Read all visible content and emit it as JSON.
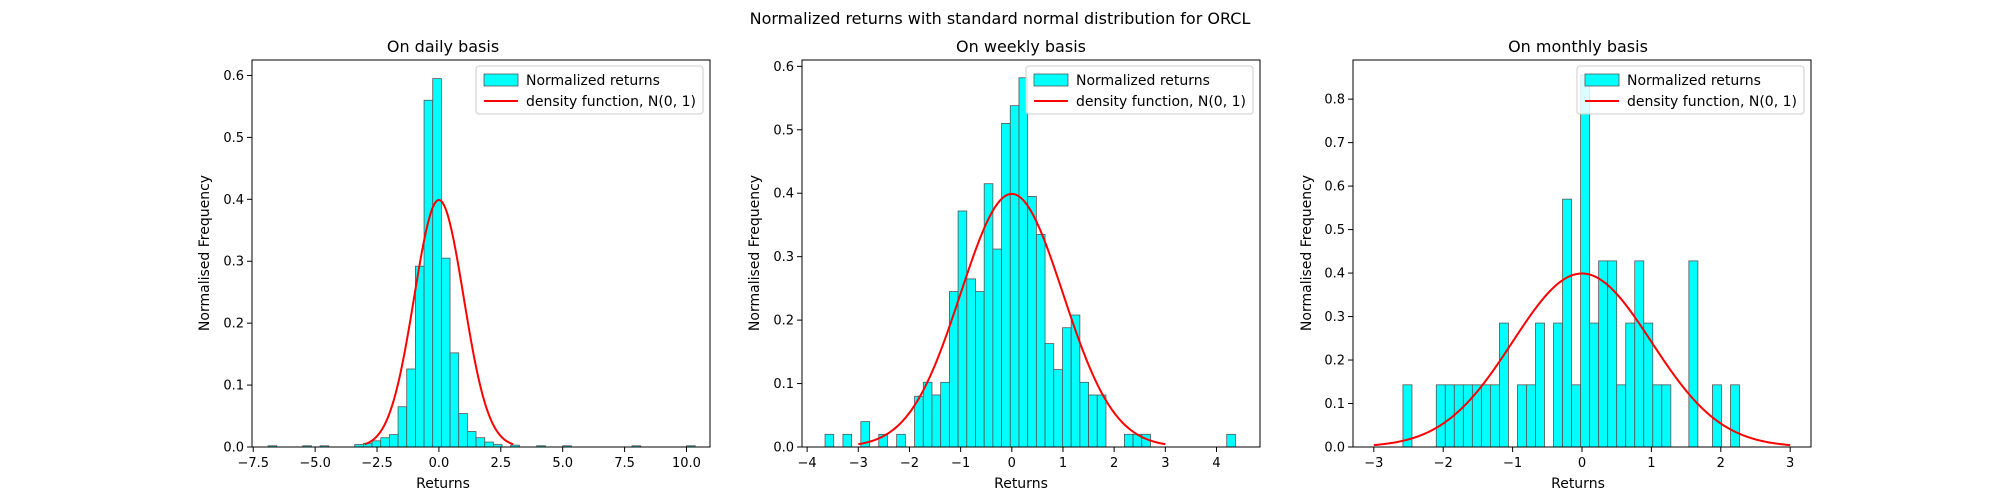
{
  "figure": {
    "title": "Normalized returns with standard normal distribution for ORCL",
    "bar_color": "#00ffff",
    "bar_edge_color": "#555555",
    "line_color": "#ff0000"
  },
  "chart_data": [
    {
      "type": "bar",
      "title": "On daily basis",
      "xlabel": "Returns",
      "ylabel": "Normalised Frequency",
      "xlim": [
        -7.55,
        10.95
      ],
      "ylim": [
        0,
        0.625
      ],
      "xticks": [
        -7.5,
        -5.0,
        -2.5,
        0.0,
        2.5,
        5.0,
        7.5,
        10.0
      ],
      "xtick_labels": [
        "−7.5",
        "−5.0",
        "−2.5",
        "0.0",
        "2.5",
        "5.0",
        "7.5",
        "10.0"
      ],
      "yticks": [
        0.0,
        0.1,
        0.2,
        0.3,
        0.4,
        0.5,
        0.6
      ],
      "ytick_labels": [
        "0.0",
        "0.1",
        "0.2",
        "0.3",
        "0.4",
        "0.5",
        "0.6"
      ],
      "legend": {
        "placement": "top-right",
        "bars": "Normalized returns",
        "line": "density function, N(0, 1)"
      },
      "histogram": {
        "bins": [
          [
            -6.9,
            -6.55,
            0.002
          ],
          [
            -5.5,
            -5.15,
            0.002
          ],
          [
            -4.8,
            -4.45,
            0.002
          ],
          [
            -3.4,
            -3.05,
            0.004
          ],
          [
            -3.05,
            -2.7,
            0.006
          ],
          [
            -2.7,
            -2.35,
            0.01
          ],
          [
            -2.35,
            -2.0,
            0.015
          ],
          [
            -2.0,
            -1.65,
            0.02
          ],
          [
            -1.65,
            -1.3,
            0.065
          ],
          [
            -1.3,
            -0.95,
            0.126
          ],
          [
            -0.95,
            -0.6,
            0.292
          ],
          [
            -0.6,
            -0.25,
            0.56
          ],
          [
            -0.25,
            0.1,
            0.595
          ],
          [
            0.1,
            0.45,
            0.305
          ],
          [
            0.45,
            0.8,
            0.152
          ],
          [
            0.8,
            1.15,
            0.054
          ],
          [
            1.15,
            1.5,
            0.025
          ],
          [
            1.5,
            1.85,
            0.015
          ],
          [
            1.85,
            2.2,
            0.008
          ],
          [
            2.2,
            2.55,
            0.004
          ],
          [
            2.9,
            3.25,
            0.003
          ],
          [
            3.95,
            4.3,
            0.002
          ],
          [
            5.0,
            5.35,
            0.002
          ],
          [
            7.8,
            8.15,
            0.002
          ],
          [
            10.0,
            10.35,
            0.002
          ]
        ]
      },
      "density_curve": {
        "distribution": "N(0, 1)",
        "x_range": [
          -3,
          3
        ]
      }
    },
    {
      "type": "bar",
      "title": "On weekly basis",
      "xlabel": "Returns",
      "ylabel": "Normalised Frequency",
      "xlim": [
        -4.1,
        4.85
      ],
      "ylim": [
        0,
        0.61
      ],
      "xticks": [
        -4,
        -3,
        -2,
        -1,
        0,
        1,
        2,
        3,
        4
      ],
      "xtick_labels": [
        "−4",
        "−3",
        "−2",
        "−1",
        "0",
        "1",
        "2",
        "3",
        "4"
      ],
      "yticks": [
        0.0,
        0.1,
        0.2,
        0.3,
        0.4,
        0.5,
        0.6
      ],
      "ytick_labels": [
        "0.0",
        "0.1",
        "0.2",
        "0.3",
        "0.4",
        "0.5",
        "0.6"
      ],
      "legend": {
        "placement": "top-right",
        "bars": "Normalized returns",
        "line": "density function, N(0, 1)"
      },
      "histogram": {
        "bins": [
          [
            -3.65,
            -3.48,
            0.02
          ],
          [
            -3.3,
            -3.13,
            0.02
          ],
          [
            -2.95,
            -2.78,
            0.04
          ],
          [
            -2.6,
            -2.43,
            0.02
          ],
          [
            -2.25,
            -2.08,
            0.02
          ],
          [
            -1.9,
            -1.73,
            0.08
          ],
          [
            -1.73,
            -1.56,
            0.102
          ],
          [
            -1.56,
            -1.39,
            0.082
          ],
          [
            -1.39,
            -1.22,
            0.102
          ],
          [
            -1.22,
            -1.05,
            0.245
          ],
          [
            -1.05,
            -0.88,
            0.372
          ],
          [
            -0.88,
            -0.71,
            0.265
          ],
          [
            -0.71,
            -0.54,
            0.245
          ],
          [
            -0.54,
            -0.37,
            0.415
          ],
          [
            -0.37,
            -0.2,
            0.312
          ],
          [
            -0.2,
            -0.03,
            0.51
          ],
          [
            -0.03,
            0.14,
            0.538
          ],
          [
            0.14,
            0.31,
            0.582
          ],
          [
            0.31,
            0.48,
            0.395
          ],
          [
            0.48,
            0.65,
            0.335
          ],
          [
            0.65,
            0.82,
            0.163
          ],
          [
            0.82,
            0.99,
            0.122
          ],
          [
            0.99,
            1.16,
            0.188
          ],
          [
            1.16,
            1.33,
            0.208
          ],
          [
            1.33,
            1.5,
            0.102
          ],
          [
            1.5,
            1.67,
            0.082
          ],
          [
            1.67,
            1.84,
            0.082
          ],
          [
            2.2,
            2.37,
            0.02
          ],
          [
            2.37,
            2.54,
            0.02
          ],
          [
            2.54,
            2.71,
            0.02
          ],
          [
            4.2,
            4.37,
            0.02
          ]
        ]
      },
      "density_curve": {
        "distribution": "N(0, 1)",
        "x_range": [
          -3,
          3
        ]
      }
    },
    {
      "type": "bar",
      "title": "On monthly basis",
      "xlabel": "Returns",
      "ylabel": "Normalised Frequency",
      "xlim": [
        -3.3,
        3.3
      ],
      "ylim": [
        0,
        0.89
      ],
      "xticks": [
        -3,
        -2,
        -1,
        0,
        1,
        2,
        3
      ],
      "xtick_labels": [
        "−3",
        "−2",
        "−1",
        "0",
        "1",
        "2",
        "3"
      ],
      "yticks": [
        0.0,
        0.1,
        0.2,
        0.3,
        0.4,
        0.5,
        0.6,
        0.7,
        0.8
      ],
      "ytick_labels": [
        "0.0",
        "0.1",
        "0.2",
        "0.3",
        "0.4",
        "0.5",
        "0.6",
        "0.7",
        "0.8"
      ],
      "legend": {
        "placement": "top-right",
        "bars": "Normalized returns",
        "line": "density function, N(0, 1)"
      },
      "histogram": {
        "bins": [
          [
            -2.58,
            -2.45,
            0.143
          ],
          [
            -2.1,
            -1.97,
            0.143
          ],
          [
            -1.97,
            -1.84,
            0.143
          ],
          [
            -1.84,
            -1.71,
            0.143
          ],
          [
            -1.71,
            -1.58,
            0.143
          ],
          [
            -1.58,
            -1.45,
            0.143
          ],
          [
            -1.45,
            -1.32,
            0.143
          ],
          [
            -1.32,
            -1.19,
            0.143
          ],
          [
            -1.19,
            -1.06,
            0.285
          ],
          [
            -0.93,
            -0.8,
            0.143
          ],
          [
            -0.8,
            -0.67,
            0.143
          ],
          [
            -0.67,
            -0.54,
            0.285
          ],
          [
            -0.41,
            -0.28,
            0.285
          ],
          [
            -0.28,
            -0.15,
            0.57
          ],
          [
            -0.15,
            -0.02,
            0.143
          ],
          [
            -0.02,
            0.11,
            0.855
          ],
          [
            0.11,
            0.24,
            0.285
          ],
          [
            0.24,
            0.37,
            0.428
          ],
          [
            0.37,
            0.5,
            0.428
          ],
          [
            0.5,
            0.63,
            0.143
          ],
          [
            0.63,
            0.76,
            0.285
          ],
          [
            0.76,
            0.89,
            0.428
          ],
          [
            0.89,
            1.02,
            0.285
          ],
          [
            1.02,
            1.15,
            0.143
          ],
          [
            1.15,
            1.28,
            0.143
          ],
          [
            1.15,
            1.28,
            0.0
          ],
          [
            1.54,
            1.67,
            0.428
          ],
          [
            1.88,
            2.01,
            0.143
          ],
          [
            2.14,
            2.27,
            0.143
          ]
        ]
      },
      "density_curve": {
        "distribution": "N(0, 1)",
        "x_range": [
          -3,
          3
        ]
      }
    }
  ]
}
